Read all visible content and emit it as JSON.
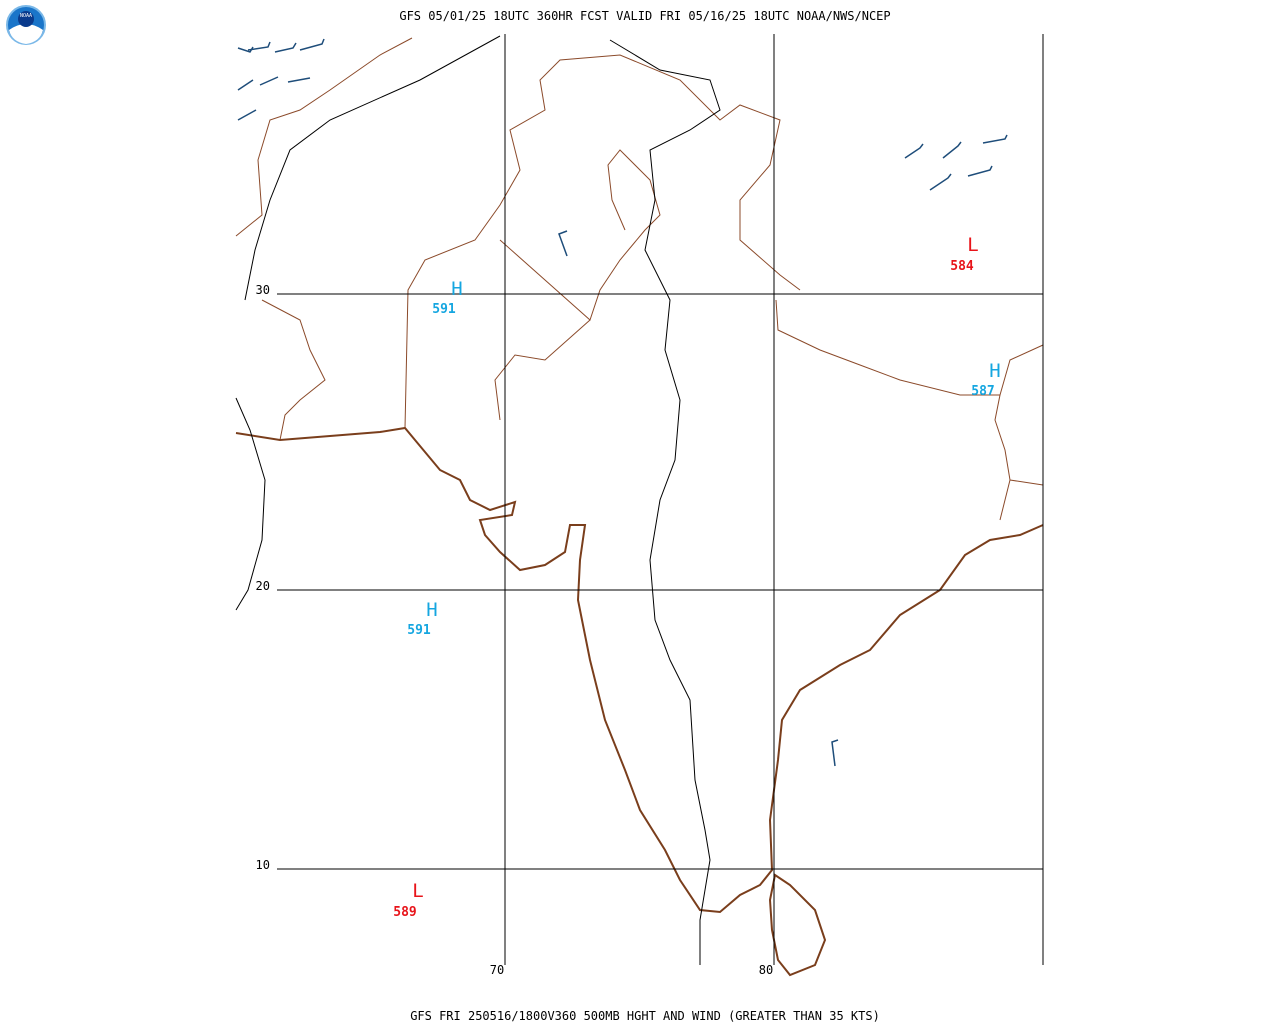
{
  "logo": {
    "text": "NOAA"
  },
  "header": {
    "title": "GFS 05/01/25 18UTC 360HR FCST VALID FRI 05/16/25 18UTC NOAA/NWS/NCEP"
  },
  "map": {
    "latitude_labels": [
      "30",
      "20",
      "10"
    ],
    "longitude_labels": [
      "70",
      "80"
    ],
    "centers": [
      {
        "label": "H",
        "value": "591"
      },
      {
        "label": "H",
        "value": "591"
      },
      {
        "label": "H",
        "value": "587"
      },
      {
        "label": "L",
        "value": "584"
      },
      {
        "label": "L",
        "value": "589"
      }
    ]
  },
  "footer": {
    "caption": "GFS FRI 250516/1800V360 500MB HGHT AND WIND (GREATER THAN 35 KTS)"
  }
}
